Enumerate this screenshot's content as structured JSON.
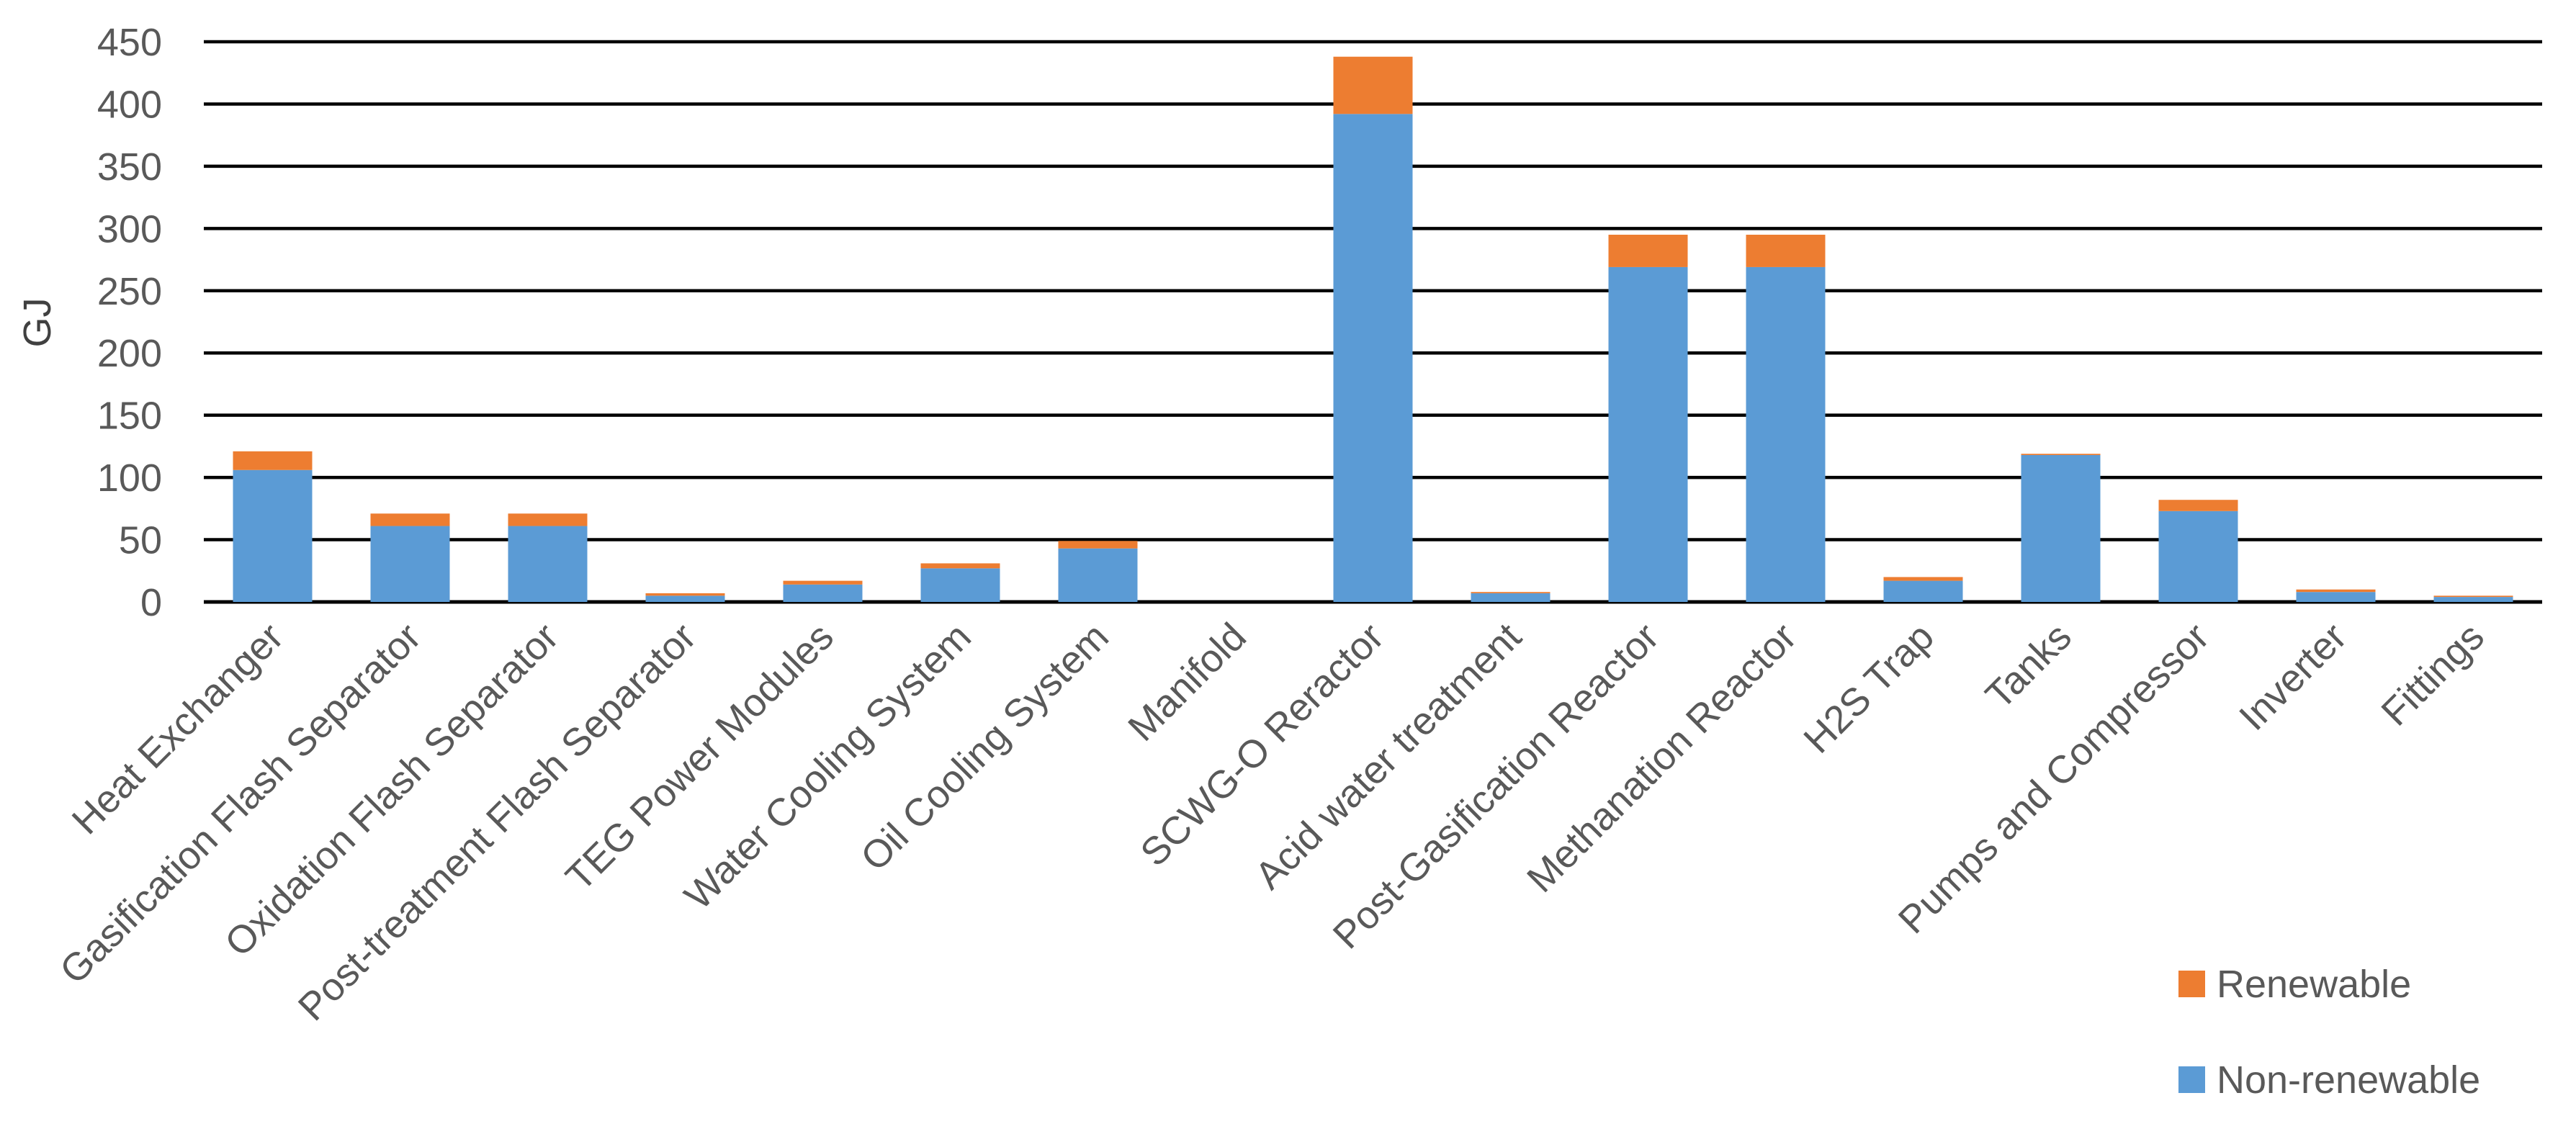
{
  "chart_data": {
    "type": "bar",
    "stacked": true,
    "ylabel": "GJ",
    "ylim": [
      0,
      450
    ],
    "yticks": [
      0,
      50,
      100,
      150,
      200,
      250,
      300,
      350,
      400,
      450
    ],
    "grid": true,
    "legend_position": "bottom-right",
    "categories": [
      "Heat Exchanger",
      "Gasification Flash Separator",
      "Oxidation Flash Separator",
      "Post-treatment Flash Separator",
      "TEG Power Modules",
      "Water Cooling System",
      "Oil Cooling System",
      "Manifold",
      "SCWG-O Reractor",
      "Acid water treatment",
      "Post-Gasification Reactor",
      "Methanation Reactor",
      "H2S Trap",
      "Tanks",
      "Pumps and Compressor",
      "Inverter",
      "Fittings"
    ],
    "series": [
      {
        "name": "Non-renewable",
        "color": "#5B9BD5",
        "values": [
          106,
          61,
          61,
          5,
          14,
          27,
          43,
          0,
          392,
          7,
          269,
          269,
          17,
          118,
          73,
          8,
          4
        ]
      },
      {
        "name": "Renewable",
        "color": "#ED7D31",
        "values": [
          15,
          10,
          10,
          2,
          3,
          4,
          6,
          0,
          46,
          1,
          26,
          26,
          3,
          1,
          9,
          2,
          1
        ]
      }
    ]
  }
}
